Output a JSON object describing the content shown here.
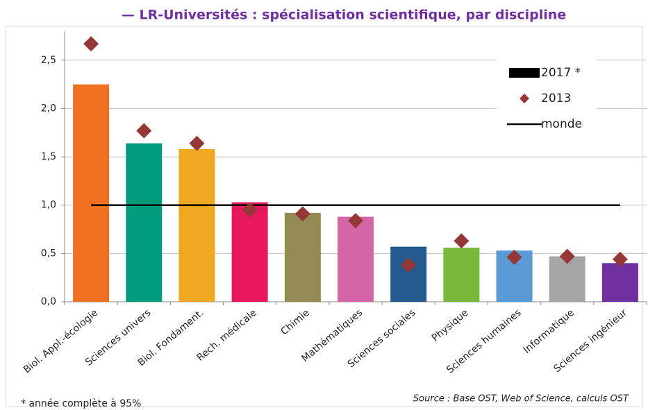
{
  "chart_data": {
    "type": "bar",
    "title": "— LR-Universités :  spécialisation scientifique, par discipline",
    "categories": [
      "Biol. Appl.-écologie",
      "Sciences univers",
      "Biol. Fondament.",
      "Rech. médicale",
      "Chimie",
      "Mathématiques",
      "Sciences sociales",
      "Physique",
      "Sciences humaines",
      "Informatique",
      "Sciences ingénieur"
    ],
    "series": [
      {
        "name": "2017 *",
        "type": "bar",
        "color": "#000000",
        "colors": [
          "#f07022",
          "#009a7c",
          "#f0a820",
          "#e8175d",
          "#948a54",
          "#d466a8",
          "#245a8e",
          "#7ab83a",
          "#5b9bd5",
          "#a5a5a5",
          "#7030a0"
        ],
        "values": [
          2.25,
          1.64,
          1.58,
          1.03,
          0.92,
          0.88,
          0.57,
          0.56,
          0.53,
          0.47,
          0.4
        ]
      },
      {
        "name": "2013",
        "type": "scatter",
        "color": "#953735",
        "values": [
          2.67,
          1.77,
          1.64,
          0.95,
          0.91,
          0.84,
          0.38,
          0.63,
          0.46,
          0.47,
          0.44
        ]
      },
      {
        "name": "monde",
        "type": "line",
        "color": "#000000",
        "values": [
          1,
          1,
          1,
          1,
          1,
          1,
          1,
          1,
          1,
          1,
          1
        ]
      }
    ],
    "ylim": [
      0,
      2.8
    ],
    "yticks": [
      {
        "value": 0,
        "label": "0,0"
      },
      {
        "value": 0.5,
        "label": "0,5"
      },
      {
        "value": 1,
        "label": "1,0"
      },
      {
        "value": 1.5,
        "label": "1,5"
      },
      {
        "value": 2,
        "label": "2,0"
      },
      {
        "value": 2.5,
        "label": "2,5"
      }
    ],
    "grid": true,
    "legend": "upper right",
    "footnote": "* année complète à 95%",
    "source": "Source : Base OST, Web of Science, calculs OST"
  }
}
